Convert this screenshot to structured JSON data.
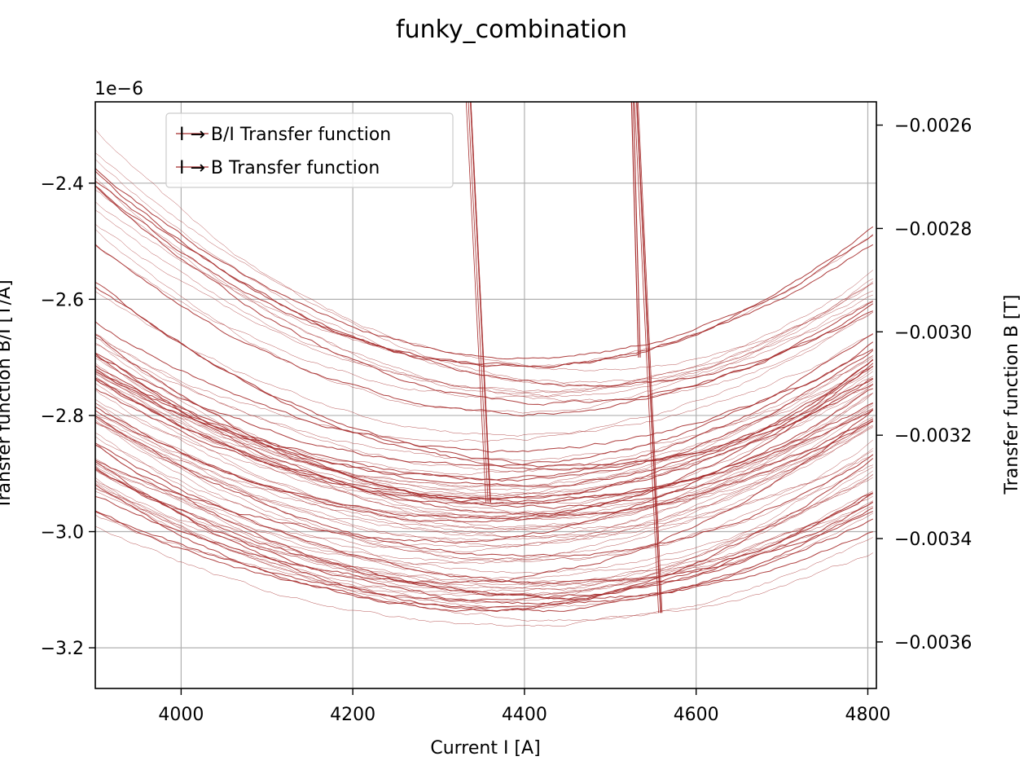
{
  "chart_data": {
    "type": "line",
    "title": "funky_combination",
    "xlabel": "Current I [A]",
    "ylabel_left": "Transfer function B/I [T/A]",
    "ylabel_right": "Transfer function B [T]",
    "left_axis_offset": "1e−6",
    "xlim": [
      3900,
      4810
    ],
    "ylim_left": [
      -3.27,
      -2.26
    ],
    "ylim_right": [
      -0.00369,
      -0.002555
    ],
    "x_ticks": [
      4000,
      4200,
      4400,
      4600,
      4800
    ],
    "y_left_ticks": [
      -3.2,
      -3.0,
      -2.8,
      -2.6,
      -2.4
    ],
    "y_right_ticks": [
      -0.0036,
      -0.0034,
      -0.0032,
      -0.003,
      -0.0028,
      -0.0026
    ],
    "grid": true,
    "legend_position": "top-left",
    "series_color": "#a52a2a",
    "legend": [
      "I → B/I Transfer function",
      "I → B Transfer function"
    ],
    "families": [
      {
        "name": "",
        "count": 34,
        "x_min": 4370,
        "y_min": -3.02,
        "spread": 0.12,
        "curvature_left": 9.5e-07,
        "curvature_right": 1.15e-06
      },
      {
        "name": "",
        "count": 26,
        "x_min": 4400,
        "y_min": -2.92,
        "spread": 0.1,
        "curvature_left": 1e-06,
        "curvature_right": 1.05e-06
      },
      {
        "name": "",
        "count": 16,
        "x_min": 4430,
        "y_min": -2.75,
        "spread": 0.05,
        "curvature_left": 1.2e-06,
        "curvature_right": 1.3e-06
      },
      {
        "name": "",
        "count": 14,
        "x_min": 4420,
        "y_min": -3.13,
        "spread": 0.05,
        "curvature_left": 7.5e-07,
        "curvature_right": 9.5e-07
      }
    ],
    "spikes": [
      {
        "x_start": 4335,
        "x_end": 4358,
        "y_top": -2.26,
        "y_bottom": -2.95
      },
      {
        "x_start": 4527,
        "x_end": 4535,
        "y_top": -2.26,
        "y_bottom": -2.7
      },
      {
        "x_start": 4530,
        "x_end": 4558,
        "y_top": -2.26,
        "y_bottom": -3.14
      }
    ]
  }
}
